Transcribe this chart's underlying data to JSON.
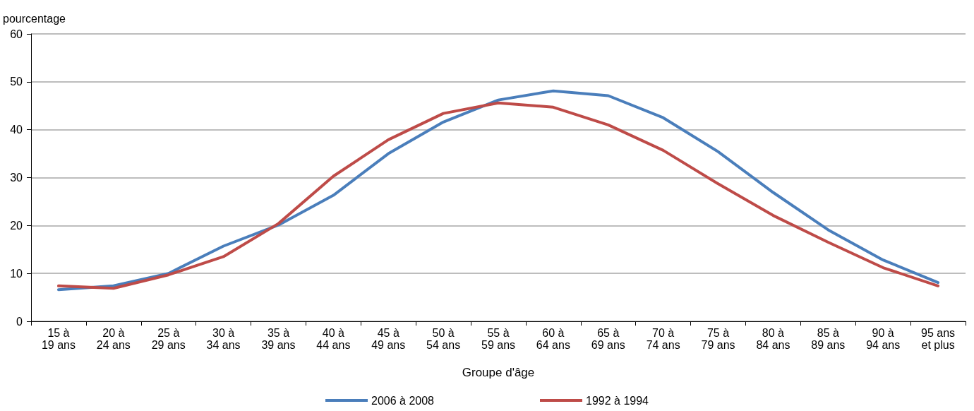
{
  "chart_data": {
    "type": "line",
    "ylabel": "pourcentage",
    "xlabel": "Groupe d'âge",
    "categories": [
      "15 à\n19 ans",
      "20 à\n24 ans",
      "25 à\n29 ans",
      "30 à\n34 ans",
      "35 à\n39 ans",
      "40 à\n44 ans",
      "45 à\n49 ans",
      "50 à\n54 ans",
      "55 à\n59 ans",
      "60 à\n64 ans",
      "65 à\n69 ans",
      "70 à\n74 ans",
      "75 à\n79 ans",
      "80 à\n84 ans",
      "85 à\n89 ans",
      "90 à\n94 ans",
      "95 ans\net plus"
    ],
    "series": [
      {
        "name": "2006 à 2008",
        "color": "#4a7ebb",
        "values": [
          6.6,
          7.4,
          10.0,
          15.7,
          20.1,
          26.3,
          35.0,
          41.6,
          46.2,
          48.1,
          47.1,
          42.5,
          35.4,
          26.9,
          19.1,
          12.8,
          8.1
        ]
      },
      {
        "name": "1992 à 1994",
        "color": "#be4b48",
        "values": [
          7.4,
          6.9,
          9.7,
          13.5,
          20.4,
          30.3,
          37.9,
          43.4,
          45.6,
          44.7,
          41.0,
          35.7,
          28.7,
          22.1,
          16.5,
          11.2,
          7.4
        ]
      }
    ],
    "ylim": [
      0,
      60
    ],
    "yticks": [
      0,
      10,
      20,
      30,
      40,
      50,
      60
    ],
    "grid": "y",
    "legend": "bottom",
    "marker": "none",
    "line_style": "solid"
  }
}
